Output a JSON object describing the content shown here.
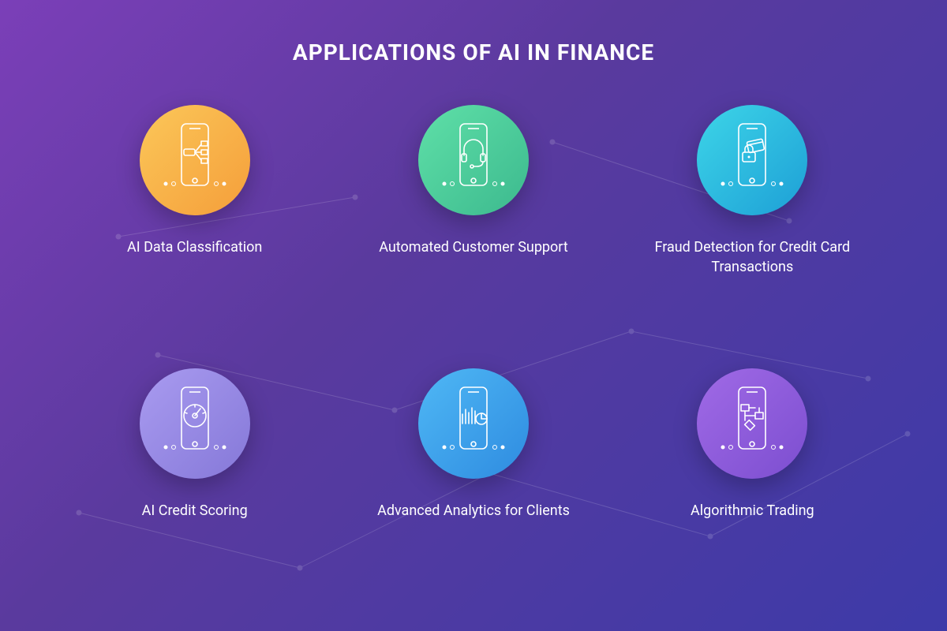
{
  "infographic": {
    "type": "infographic",
    "title": "APPLICATIONS OF AI IN FINANCE",
    "title_fontsize": 28,
    "title_color": "#ffffff",
    "background_gradient": [
      "#7b3fb8",
      "#5a3a9e",
      "#3d3aa8"
    ],
    "layout": {
      "columns": 3,
      "rows": 2
    },
    "circle_diameter": 140,
    "label_fontsize": 18,
    "label_color": "#ffffff",
    "icon_stroke_color": "#ffffff",
    "icon_stroke_width": 1.6,
    "items": [
      {
        "label": "AI Data Classification",
        "gradient": [
          "#fbc759",
          "#f59e3a"
        ],
        "icon": "data-classification"
      },
      {
        "label": "Automated Customer Support",
        "gradient": [
          "#5fe0a8",
          "#3cb98e"
        ],
        "icon": "headset"
      },
      {
        "label": "Fraud Detection for Credit Card Transactions",
        "gradient": [
          "#3dd5e8",
          "#1d9fd6"
        ],
        "icon": "lock-card"
      },
      {
        "label": "AI Credit Scoring",
        "gradient": [
          "#a99bf0",
          "#8578d8"
        ],
        "icon": "gauge"
      },
      {
        "label": "Advanced Analytics for Clients",
        "gradient": [
          "#4fb8f5",
          "#2e8be0"
        ],
        "icon": "chart-pie"
      },
      {
        "label": "Algorithmic Trading",
        "gradient": [
          "#a06ae6",
          "#7c4ed0"
        ],
        "icon": "flowchart"
      }
    ]
  }
}
